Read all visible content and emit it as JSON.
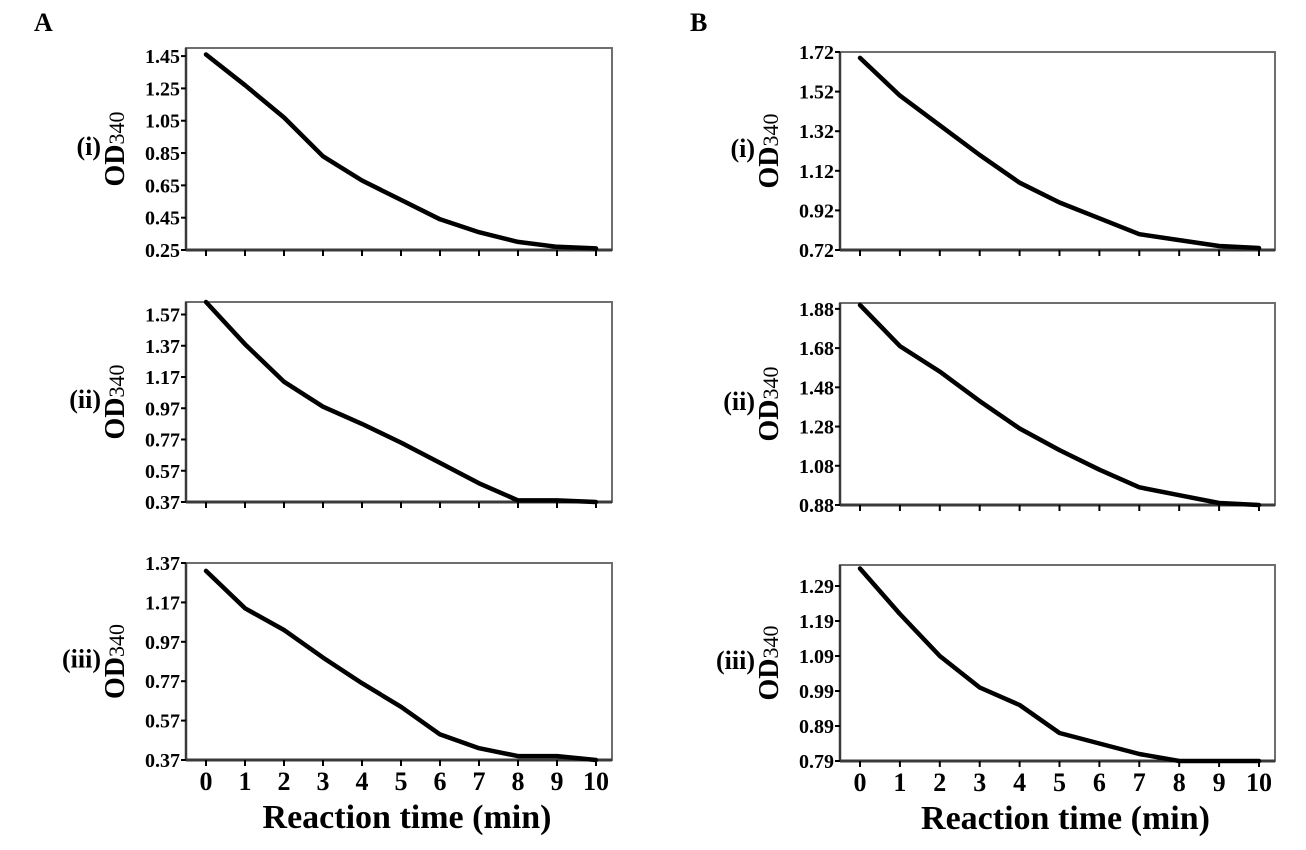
{
  "figure": {
    "columns": [
      {
        "label": "A"
      },
      {
        "label": "B"
      }
    ],
    "ylabel_main": "OD",
    "ylabel_sub": "340",
    "xlabel": "Reaction time (min)"
  },
  "chart_data": [
    {
      "type": "line",
      "panel": "A",
      "row_label": "(i)",
      "title": "",
      "xlabel": "Reaction time (min)",
      "ylabel": "OD340",
      "x": [
        0,
        1,
        2,
        3,
        4,
        5,
        6,
        7,
        8,
        9,
        10
      ],
      "values": [
        1.46,
        1.27,
        1.07,
        0.83,
        0.68,
        0.56,
        0.44,
        0.36,
        0.3,
        0.27,
        0.26
      ],
      "yticks": [
        "1.45",
        "1.25",
        "1.05",
        "0.85",
        "0.65",
        "0.45",
        "0.25"
      ],
      "ylim": [
        0.25,
        1.5
      ],
      "xticks": [
        "0",
        "1",
        "2",
        "3",
        "4",
        "5",
        "6",
        "7",
        "8",
        "9",
        "10"
      ],
      "show_xticklabels": false,
      "grid": false
    },
    {
      "type": "line",
      "panel": "A",
      "row_label": "(ii)",
      "title": "",
      "xlabel": "Reaction time (min)",
      "ylabel": "OD340",
      "x": [
        0,
        1,
        2,
        3,
        4,
        5,
        6,
        7,
        8,
        9,
        10
      ],
      "values": [
        1.65,
        1.38,
        1.14,
        0.98,
        0.87,
        0.75,
        0.62,
        0.49,
        0.38,
        0.38,
        0.37
      ],
      "yticks": [
        "1.57",
        "1.37",
        "1.17",
        "0.97",
        "0.77",
        "0.57",
        "0.37"
      ],
      "ylim": [
        0.37,
        1.65
      ],
      "xticks": [
        "0",
        "1",
        "2",
        "3",
        "4",
        "5",
        "6",
        "7",
        "8",
        "9",
        "10"
      ],
      "show_xticklabels": false,
      "grid": false
    },
    {
      "type": "line",
      "panel": "A",
      "row_label": "(iii)",
      "title": "",
      "xlabel": "Reaction time (min)",
      "ylabel": "OD340",
      "x": [
        0,
        1,
        2,
        3,
        4,
        5,
        6,
        7,
        8,
        9,
        10
      ],
      "values": [
        1.33,
        1.14,
        1.03,
        0.89,
        0.76,
        0.64,
        0.5,
        0.43,
        0.39,
        0.39,
        0.37
      ],
      "yticks": [
        "1.37",
        "1.17",
        "0.97",
        "0.77",
        "0.57",
        "0.37"
      ],
      "ylim": [
        0.37,
        1.37
      ],
      "xticks": [
        "0",
        "1",
        "2",
        "3",
        "4",
        "5",
        "6",
        "7",
        "8",
        "9",
        "10"
      ],
      "show_xticklabels": true,
      "grid": false
    },
    {
      "type": "line",
      "panel": "B",
      "row_label": "(i)",
      "title": "",
      "xlabel": "Reaction time (min)",
      "ylabel": "OD340",
      "x": [
        0,
        1,
        2,
        3,
        4,
        5,
        6,
        7,
        8,
        9,
        10
      ],
      "values": [
        1.69,
        1.5,
        1.35,
        1.2,
        1.06,
        0.96,
        0.88,
        0.8,
        0.77,
        0.74,
        0.73
      ],
      "yticks": [
        "1.72",
        "1.52",
        "1.32",
        "1.12",
        "0.92",
        "0.72"
      ],
      "ylim": [
        0.72,
        1.72
      ],
      "xticks": [
        "0",
        "1",
        "2",
        "3",
        "4",
        "5",
        "6",
        "7",
        "8",
        "9",
        "10"
      ],
      "show_xticklabels": false,
      "grid": false
    },
    {
      "type": "line",
      "panel": "B",
      "row_label": "(ii)",
      "title": "",
      "xlabel": "Reaction time (min)",
      "ylabel": "OD340",
      "x": [
        0,
        1,
        2,
        3,
        4,
        5,
        6,
        7,
        8,
        9,
        10
      ],
      "values": [
        1.9,
        1.69,
        1.56,
        1.41,
        1.27,
        1.16,
        1.06,
        0.97,
        0.93,
        0.89,
        0.88
      ],
      "yticks": [
        "1.88",
        "1.68",
        "1.48",
        "1.28",
        "1.08",
        "0.88"
      ],
      "ylim": [
        0.88,
        1.91
      ],
      "xticks": [
        "0",
        "1",
        "2",
        "3",
        "4",
        "5",
        "6",
        "7",
        "8",
        "9",
        "10"
      ],
      "show_xticklabels": false,
      "grid": false
    },
    {
      "type": "line",
      "panel": "B",
      "row_label": "(iii)",
      "title": "",
      "xlabel": "Reaction time (min)",
      "ylabel": "OD340",
      "x": [
        0,
        1,
        2,
        3,
        4,
        5,
        6,
        7,
        8,
        9,
        10
      ],
      "values": [
        1.34,
        1.21,
        1.09,
        1.0,
        0.95,
        0.87,
        0.84,
        0.81,
        0.79,
        0.79,
        0.79
      ],
      "yticks": [
        "1.29",
        "1.19",
        "1.09",
        "0.99",
        "0.89",
        "0.79"
      ],
      "ylim": [
        0.79,
        1.35
      ],
      "xticks": [
        "0",
        "1",
        "2",
        "3",
        "4",
        "5",
        "6",
        "7",
        "8",
        "9",
        "10"
      ],
      "show_xticklabels": true,
      "grid": false
    }
  ]
}
